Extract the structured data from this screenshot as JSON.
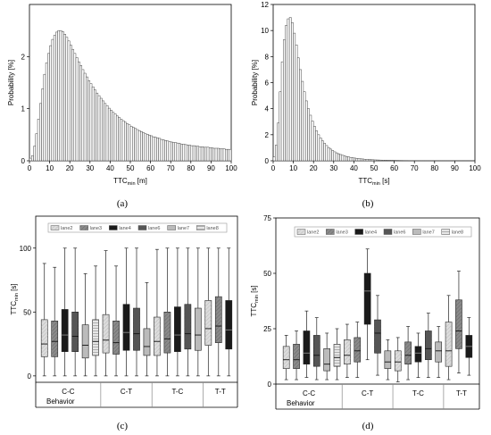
{
  "chart_data": [
    {
      "panel": "(a)",
      "type": "bar",
      "xlabel": "TTC",
      "xlabel_sub": "min",
      "xlabel_unit": " [m]",
      "ylabel": "Probability [%]",
      "xlim": [
        0,
        100
      ],
      "ylim": [
        0,
        3
      ],
      "x_ticks": [
        "0",
        "10",
        "20",
        "30",
        "40",
        "50",
        "60",
        "70",
        "80",
        "90",
        "100"
      ],
      "y_ticks": [
        "0",
        "1",
        "2"
      ],
      "bin_width": 1,
      "x": [
        0.5,
        1.5,
        2.5,
        3.5,
        4.5,
        5.5,
        6.5,
        7.5,
        8.5,
        9.5,
        10.5,
        11.5,
        12.5,
        13.5,
        14.5,
        15.5,
        16.5,
        17.5,
        18.5,
        19.5,
        20.5,
        21.5,
        22.5,
        23.5,
        24.5,
        25.5,
        26.5,
        27.5,
        28.5,
        29.5,
        30.5,
        31.5,
        32.5,
        33.5,
        34.5,
        35.5,
        36.5,
        37.5,
        38.5,
        39.5,
        40.5,
        41.5,
        42.5,
        43.5,
        44.5,
        45.5,
        46.5,
        47.5,
        48.5,
        49.5,
        50.5,
        51.5,
        52.5,
        53.5,
        54.5,
        55.5,
        56.5,
        57.5,
        58.5,
        59.5,
        60.5,
        61.5,
        62.5,
        63.5,
        64.5,
        65.5,
        66.5,
        67.5,
        68.5,
        69.5,
        70.5,
        71.5,
        72.5,
        73.5,
        74.5,
        75.5,
        76.5,
        77.5,
        78.5,
        79.5,
        80.5,
        81.5,
        82.5,
        83.5,
        84.5,
        85.5,
        86.5,
        87.5,
        88.5,
        89.5,
        90.5,
        91.5,
        92.5,
        93.5,
        94.5,
        95.5,
        96.5,
        97.5,
        98.5,
        99.5
      ],
      "values": [
        0.05,
        0.1,
        0.28,
        0.52,
        0.8,
        1.1,
        1.38,
        1.66,
        1.88,
        2.06,
        2.21,
        2.33,
        2.41,
        2.47,
        2.5,
        2.5,
        2.48,
        2.43,
        2.37,
        2.3,
        2.22,
        2.14,
        2.06,
        1.98,
        1.9,
        1.83,
        1.75,
        1.68,
        1.61,
        1.54,
        1.48,
        1.42,
        1.36,
        1.3,
        1.25,
        1.2,
        1.15,
        1.1,
        1.06,
        1.01,
        0.97,
        0.93,
        0.9,
        0.86,
        0.83,
        0.8,
        0.77,
        0.74,
        0.71,
        0.69,
        0.66,
        0.64,
        0.62,
        0.6,
        0.58,
        0.56,
        0.54,
        0.52,
        0.51,
        0.49,
        0.48,
        0.46,
        0.45,
        0.44,
        0.43,
        0.41,
        0.4,
        0.39,
        0.38,
        0.37,
        0.36,
        0.35,
        0.35,
        0.34,
        0.33,
        0.32,
        0.32,
        0.31,
        0.3,
        0.3,
        0.29,
        0.29,
        0.28,
        0.28,
        0.27,
        0.27,
        0.26,
        0.26,
        0.26,
        0.25,
        0.25,
        0.24,
        0.24,
        0.24,
        0.23,
        0.23,
        0.23,
        0.22,
        0.22,
        0.22
      ]
    },
    {
      "panel": "(b)",
      "type": "bar",
      "xlabel": "TTC",
      "xlabel_sub": "min",
      "xlabel_unit": " [s]",
      "ylabel": "Probability [%]",
      "xlim": [
        0,
        100
      ],
      "ylim": [
        0,
        12
      ],
      "x_ticks": [
        "0",
        "10",
        "20",
        "30",
        "40",
        "50",
        "60",
        "70",
        "80",
        "90",
        "100"
      ],
      "y_ticks": [
        "0",
        "2",
        "4",
        "6",
        "8",
        "10",
        "12"
      ],
      "bin_width": 1,
      "x": [
        0.5,
        1.5,
        2.5,
        3.5,
        4.5,
        5.5,
        6.5,
        7.5,
        8.5,
        9.5,
        10.5,
        11.5,
        12.5,
        13.5,
        14.5,
        15.5,
        16.5,
        17.5,
        18.5,
        19.5,
        20.5,
        21.5,
        22.5,
        23.5,
        24.5,
        25.5,
        26.5,
        27.5,
        28.5,
        29.5,
        30.5,
        31.5,
        32.5,
        33.5,
        34.5,
        35.5,
        36.5,
        37.5,
        38.5,
        39.5,
        40.5,
        41.5,
        42.5,
        43.5,
        44.5,
        45.5,
        46.5,
        47.5,
        48.5,
        49.5,
        50.5,
        51.5,
        52.5,
        53.5,
        54.5,
        55.5,
        56.5,
        57.5,
        58.5,
        59.5,
        60.5,
        61.5,
        62.5,
        63.5,
        64.5,
        65.5,
        66.5,
        67.5,
        68.5,
        69.5,
        70.5,
        71.5,
        72.5,
        73.5,
        74.5,
        75.5,
        76.5,
        77.5,
        78.5,
        79.5,
        80.5,
        81.5,
        82.5,
        83.5,
        84.5,
        85.5,
        86.5,
        87.5,
        88.5,
        89.5,
        90.5,
        91.5,
        92.5,
        93.5,
        94.5,
        95.5,
        96.5,
        97.5,
        98.5,
        99.5
      ],
      "values": [
        0.3,
        1.2,
        2.9,
        5.3,
        7.6,
        9.3,
        10.4,
        10.9,
        11.0,
        10.6,
        9.8,
        8.9,
        7.9,
        7.0,
        6.1,
        5.3,
        4.6,
        4.0,
        3.5,
        3.05,
        2.65,
        2.3,
        2.0,
        1.75,
        1.53,
        1.34,
        1.17,
        1.02,
        0.9,
        0.79,
        0.69,
        0.61,
        0.54,
        0.48,
        0.42,
        0.37,
        0.33,
        0.29,
        0.26,
        0.23,
        0.21,
        0.19,
        0.17,
        0.15,
        0.14,
        0.12,
        0.11,
        0.1,
        0.09,
        0.08,
        0.07,
        0.065,
        0.06,
        0.055,
        0.05,
        0.045,
        0.04,
        0.037,
        0.034,
        0.03,
        0.028,
        0.026,
        0.024,
        0.022,
        0.02,
        0.018,
        0.017,
        0.015,
        0.014,
        0.013,
        0.012,
        0.011,
        0.01,
        0.009,
        0.009,
        0.008,
        0.008,
        0.007,
        0.007,
        0.006,
        0.006,
        0.005,
        0.005,
        0.005,
        0.004,
        0.004,
        0.004,
        0.004,
        0.003,
        0.003,
        0.003,
        0.003,
        0.003,
        0.002,
        0.002,
        0.002,
        0.002,
        0.002,
        0.002,
        0.002
      ]
    },
    {
      "panel": "(c)",
      "type": "box",
      "xlabel": "Behavior",
      "ylabel": "TTC",
      "ylabel_sub": "min",
      "ylabel_unit": " [s]",
      "ylim": [
        -5,
        125
      ],
      "y_ticks": [
        "0",
        "50",
        "100"
      ],
      "y_tick_values": [
        0,
        50,
        100
      ],
      "groups": [
        "C-C",
        "C-T",
        "T-C",
        "T-T"
      ],
      "group_spans": [
        [
          0,
          6
        ],
        [
          6,
          11
        ],
        [
          11,
          16
        ],
        [
          16,
          19
        ]
      ],
      "legend": [
        "lane2",
        "lane3",
        "lane4",
        "lane6",
        "lane7",
        "lane8"
      ],
      "boxes": [
        {
          "group": "C-C",
          "series": "lane2",
          "whisker_low": 0,
          "q1": 15,
          "median": 25,
          "q3": 44,
          "whisker_high": 88
        },
        {
          "group": "C-C",
          "series": "lane3",
          "whisker_low": 0,
          "q1": 15,
          "median": 27,
          "q3": 43,
          "whisker_high": 85
        },
        {
          "group": "C-C",
          "series": "lane4",
          "whisker_low": 0,
          "q1": 19,
          "median": 32,
          "q3": 52,
          "whisker_high": 100
        },
        {
          "group": "C-C",
          "series": "lane6",
          "whisker_low": 0,
          "q1": 19,
          "median": 31,
          "q3": 50,
          "whisker_high": 100
        },
        {
          "group": "C-C",
          "series": "lane7",
          "whisker_low": 0,
          "q1": 14,
          "median": 24,
          "q3": 40,
          "whisker_high": 80
        },
        {
          "group": "C-C",
          "series": "lane8",
          "whisker_low": 0,
          "q1": 16,
          "median": 27,
          "q3": 44,
          "whisker_high": 86
        },
        {
          "group": "C-T",
          "series": "lane2",
          "whisker_low": 0,
          "q1": 18,
          "median": 28,
          "q3": 48,
          "whisker_high": 98
        },
        {
          "group": "C-T",
          "series": "lane3",
          "whisker_low": 0,
          "q1": 17,
          "median": 26,
          "q3": 43,
          "whisker_high": 86
        },
        {
          "group": "C-T",
          "series": "lane4",
          "whisker_low": 0,
          "q1": 20,
          "median": 34,
          "q3": 56,
          "whisker_high": 100
        },
        {
          "group": "C-T",
          "series": "lane6",
          "whisker_low": 0,
          "q1": 20,
          "median": 33,
          "q3": 53,
          "whisker_high": 100
        },
        {
          "group": "C-T",
          "series": "lane7",
          "whisker_low": 0,
          "q1": 16,
          "median": 23,
          "q3": 37,
          "whisker_high": 73
        },
        {
          "group": "T-C",
          "series": "lane2",
          "whisker_low": 0,
          "q1": 16,
          "median": 27,
          "q3": 46,
          "whisker_high": 99
        },
        {
          "group": "T-C",
          "series": "lane3",
          "whisker_low": 0,
          "q1": 18,
          "median": 29,
          "q3": 50,
          "whisker_high": 100
        },
        {
          "group": "T-C",
          "series": "lane4",
          "whisker_low": 0,
          "q1": 19,
          "median": 32,
          "q3": 54,
          "whisker_high": 100
        },
        {
          "group": "T-C",
          "series": "lane6",
          "whisker_low": 0,
          "q1": 21,
          "median": 33,
          "q3": 56,
          "whisker_high": 100
        },
        {
          "group": "T-C",
          "series": "lane7",
          "whisker_low": 0,
          "q1": 20,
          "median": 32,
          "q3": 53,
          "whisker_high": 100
        },
        {
          "group": "T-T",
          "series": "lane2",
          "whisker_low": 0,
          "q1": 24,
          "median": 37,
          "q3": 59,
          "whisker_high": 100
        },
        {
          "group": "T-T",
          "series": "lane3",
          "whisker_low": 0,
          "q1": 26,
          "median": 39,
          "q3": 62,
          "whisker_high": 100
        },
        {
          "group": "T-T",
          "series": "lane4",
          "whisker_low": 0,
          "q1": 21,
          "median": 36,
          "q3": 59,
          "whisker_high": 100
        }
      ]
    },
    {
      "panel": "(d)",
      "type": "box",
      "xlabel": "Behavior",
      "ylabel": "TTC",
      "ylabel_sub": "min",
      "ylabel_unit": " [s]",
      "ylim": [
        0,
        75
      ],
      "y_ticks": [
        "0",
        "25",
        "50",
        "75"
      ],
      "y_tick_values": [
        0,
        25,
        50,
        75
      ],
      "groups": [
        "C-C",
        "C-T",
        "T-C",
        "T-T"
      ],
      "group_spans": [
        [
          0,
          6
        ],
        [
          6,
          11
        ],
        [
          11,
          16
        ],
        [
          16,
          19
        ]
      ],
      "legend": [
        "lane2",
        "lane3",
        "lane4",
        "lane6",
        "lane7",
        "lane8"
      ],
      "boxes": [
        {
          "group": "C-C",
          "series": "lane2",
          "whisker_low": 2,
          "q1": 7,
          "median": 11,
          "q3": 17,
          "whisker_high": 22
        },
        {
          "group": "C-C",
          "series": "lane3",
          "whisker_low": 2,
          "q1": 7,
          "median": 11,
          "q3": 18,
          "whisker_high": 24
        },
        {
          "group": "C-C",
          "series": "lane4",
          "whisker_low": 3,
          "q1": 9,
          "median": 14,
          "q3": 24,
          "whisker_high": 33
        },
        {
          "group": "C-C",
          "series": "lane6",
          "whisker_low": 2,
          "q1": 8,
          "median": 13,
          "q3": 22,
          "whisker_high": 30
        },
        {
          "group": "C-C",
          "series": "lane7",
          "whisker_low": 2,
          "q1": 6,
          "median": 9,
          "q3": 16,
          "whisker_high": 23
        },
        {
          "group": "C-C",
          "series": "lane8",
          "whisker_low": 2,
          "q1": 8,
          "median": 12,
          "q3": 18,
          "whisker_high": 25
        },
        {
          "group": "C-T",
          "series": "lane2",
          "whisker_low": 3,
          "q1": 9,
          "median": 13,
          "q3": 20,
          "whisker_high": 27
        },
        {
          "group": "C-T",
          "series": "lane3",
          "whisker_low": 3,
          "q1": 10,
          "median": 15,
          "q3": 21,
          "whisker_high": 28
        },
        {
          "group": "C-T",
          "series": "lane4",
          "whisker_low": 11,
          "q1": 27,
          "median": 42,
          "q3": 50,
          "whisker_high": 61
        },
        {
          "group": "C-T",
          "series": "lane6",
          "whisker_low": 4,
          "q1": 14,
          "median": 23,
          "q3": 29,
          "whisker_high": 40
        },
        {
          "group": "C-T",
          "series": "lane7",
          "whisker_low": 2,
          "q1": 7,
          "median": 10,
          "q3": 15,
          "whisker_high": 20
        },
        {
          "group": "T-C",
          "series": "lane2",
          "whisker_low": 1,
          "q1": 6,
          "median": 10,
          "q3": 15,
          "whisker_high": 21
        },
        {
          "group": "T-C",
          "series": "lane3",
          "whisker_low": 2,
          "q1": 9,
          "median": 13,
          "q3": 19,
          "whisker_high": 26
        },
        {
          "group": "T-C",
          "series": "lane4",
          "whisker_low": 3,
          "q1": 10,
          "median": 14,
          "q3": 17,
          "whisker_high": 23
        },
        {
          "group": "T-C",
          "series": "lane6",
          "whisker_low": 3,
          "q1": 11,
          "median": 16,
          "q3": 24,
          "whisker_high": 32
        },
        {
          "group": "T-C",
          "series": "lane7",
          "whisker_low": 3,
          "q1": 10,
          "median": 15,
          "q3": 19,
          "whisker_high": 26
        },
        {
          "group": "T-T",
          "series": "lane2",
          "whisker_low": 2,
          "q1": 8,
          "median": 15,
          "q3": 28,
          "whisker_high": 40
        },
        {
          "group": "T-T",
          "series": "lane3",
          "whisker_low": 5,
          "q1": 16,
          "median": 24,
          "q3": 38,
          "whisker_high": 51
        },
        {
          "group": "T-T",
          "series": "lane4",
          "whisker_low": 4,
          "q1": 12,
          "median": 17,
          "q3": 22,
          "whisker_high": 30
        }
      ]
    }
  ],
  "captions": {
    "a": "(a)",
    "b": "(b)",
    "c": "(c)",
    "d": "(d)"
  },
  "colors": {
    "bar_fill": "#ffffff",
    "bar_stroke": "#333333",
    "axis": "#000000",
    "separator": "#888888"
  },
  "series_styles": {
    "lane2": {
      "fill": "#dcdcdc",
      "hatch": "diag"
    },
    "lane3": {
      "fill": "#8a8a8a",
      "hatch": "diag"
    },
    "lane4": {
      "fill": "#1a1a1a",
      "hatch": "none"
    },
    "lane6": {
      "fill": "#555555",
      "hatch": "diag"
    },
    "lane7": {
      "fill": "#bbbbbb",
      "hatch": "none"
    },
    "lane8": {
      "fill": "#e6e6e6",
      "hatch": "horiz"
    }
  }
}
